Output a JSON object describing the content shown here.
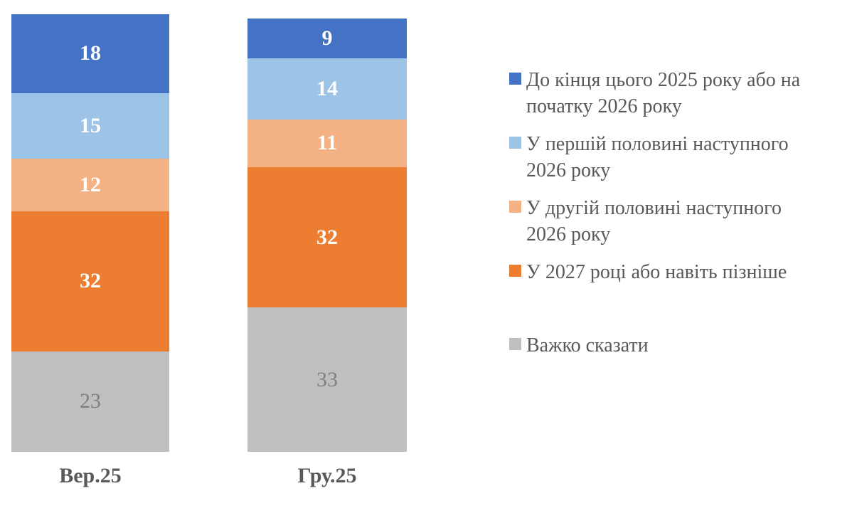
{
  "chart_data": {
    "type": "bar",
    "stacked": true,
    "orientation": "vertical",
    "title": "",
    "xlabel": "",
    "ylabel": "",
    "axes_hidden": true,
    "grid": false,
    "categories": [
      "Вер.25",
      "Гру.25"
    ],
    "series": [
      {
        "name": "До кінця цього 2025 року або на початку 2026 року",
        "legend_lines": [
          "До кінця цього 2025 року або на",
          "початку 2026 року"
        ],
        "color": "#4472C4",
        "values": [
          18,
          9
        ],
        "label_color": "#ffffff",
        "label_bold": true
      },
      {
        "name": "У першій половині наступного 2026 року",
        "legend_lines": [
          "У першій половині наступного",
          "2026 року"
        ],
        "color": "#9DC3E6",
        "values": [
          15,
          14
        ],
        "label_color": "#ffffff",
        "label_bold": true
      },
      {
        "name": "У другій половині наступного 2026 року",
        "legend_lines": [
          "У другій половині наступного",
          "2026 року"
        ],
        "color": "#F4B183",
        "values": [
          12,
          11
        ],
        "label_color": "#ffffff",
        "label_bold": true
      },
      {
        "name": "У 2027 році або навіть пізніше",
        "legend_lines": [
          "У 2027 році або навіть пізніше"
        ],
        "color": "#ED7D31",
        "values": [
          32,
          32
        ],
        "label_color": "#ffffff",
        "label_bold": true
      },
      {
        "name": "Важко сказати",
        "legend_lines": [
          "Важко сказати"
        ],
        "color": "#BFBFBF",
        "values": [
          23,
          33
        ],
        "label_color": "#808080",
        "label_bold": false,
        "legend_gap_above": true
      }
    ],
    "legend": {
      "position": "right"
    },
    "category_label_color": "#595959"
  }
}
